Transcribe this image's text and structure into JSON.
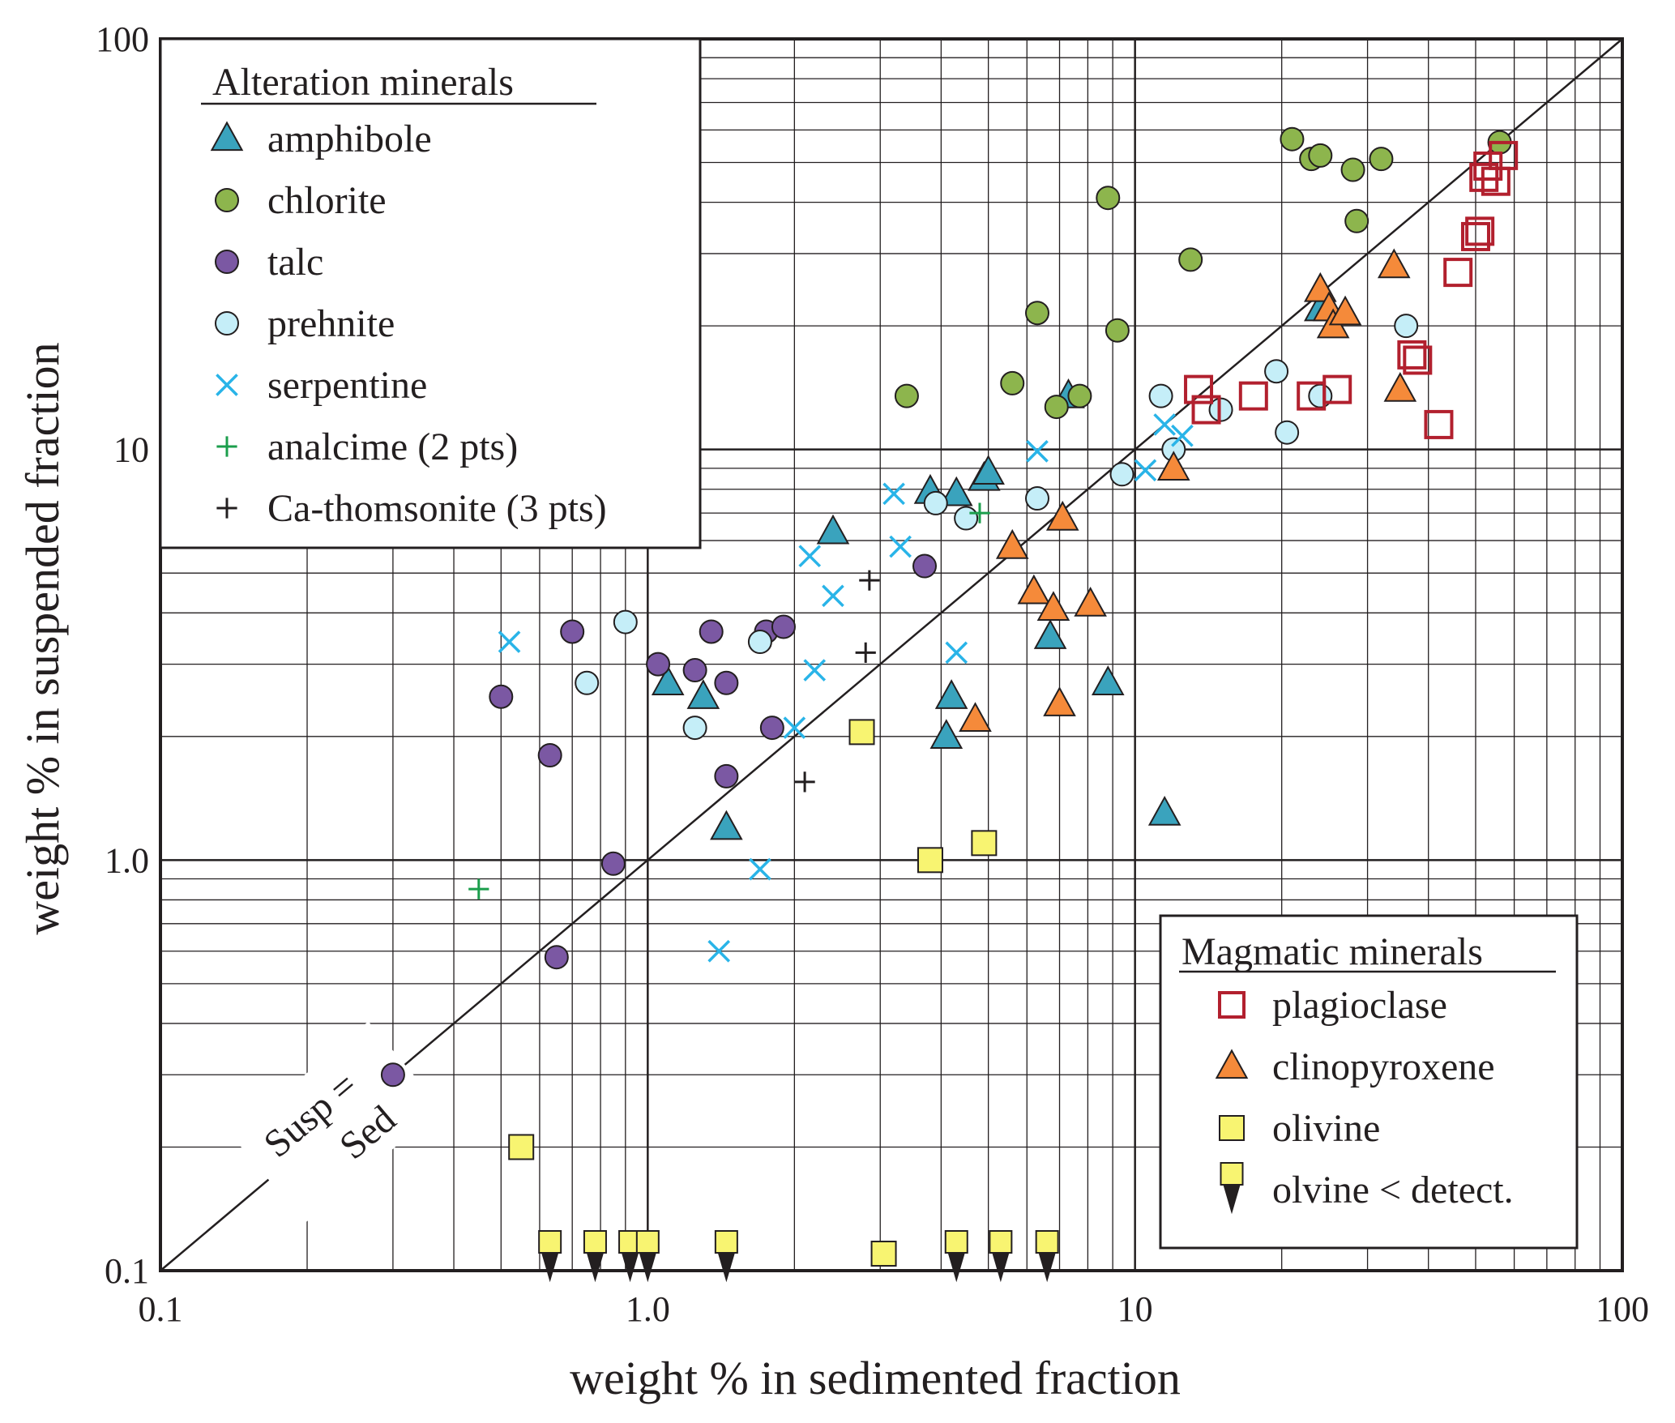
{
  "chart_data": {
    "type": "scatter",
    "xscale": "log",
    "yscale": "log",
    "xlim": [
      0.1,
      100
    ],
    "ylim": [
      0.1,
      100
    ],
    "xlabel": "weight % in sedimented fraction",
    "ylabel": "weight % in suspended fraction",
    "xticks": [
      "0.1",
      "1.0",
      "10",
      "100"
    ],
    "yticks": [
      "0.1",
      "1.0",
      "10",
      "100"
    ],
    "reference_line": {
      "label_line1": "Susp =",
      "label_line2": "Sed"
    },
    "legend_alteration": {
      "title": "Alteration minerals",
      "entries": [
        "amphibole",
        "chlorite",
        "talc",
        "prehnite",
        "serpentine",
        "analcime (2 pts)",
        "Ca-thomsonite (3 pts)"
      ]
    },
    "legend_magmatic": {
      "title": "Magmatic minerals",
      "entries": [
        "plagioclase",
        "clinopyroxene",
        "olivine",
        "olvine < detect."
      ]
    },
    "series": [
      {
        "name": "amphibole",
        "marker": "triangle",
        "color": "#3aa3bd",
        "points": [
          [
            1.1,
            2.7
          ],
          [
            1.3,
            2.5
          ],
          [
            1.45,
            1.2
          ],
          [
            2.4,
            6.3
          ],
          [
            3.8,
            7.9
          ],
          [
            4.3,
            7.8
          ],
          [
            4.9,
            8.5
          ],
          [
            5.0,
            8.8
          ],
          [
            7.3,
            13.5
          ],
          [
            4.2,
            2.5
          ],
          [
            4.1,
            2.0
          ],
          [
            6.7,
            3.5
          ],
          [
            8.8,
            2.7
          ],
          [
            11.5,
            1.3
          ],
          [
            24.0,
            22.0
          ]
        ]
      },
      {
        "name": "chlorite",
        "marker": "circle",
        "color": "#8db54d",
        "points": [
          [
            3.4,
            13.5
          ],
          [
            5.6,
            14.5
          ],
          [
            6.3,
            21.5
          ],
          [
            6.9,
            12.7
          ],
          [
            7.7,
            13.5
          ],
          [
            8.8,
            41.0
          ],
          [
            9.2,
            19.5
          ],
          [
            13.0,
            29.0
          ],
          [
            21.0,
            57.0
          ],
          [
            23.0,
            51.0
          ],
          [
            24.0,
            52.0
          ],
          [
            28.0,
            48.0
          ],
          [
            28.5,
            36.0
          ],
          [
            32.0,
            51.0
          ],
          [
            56.0,
            56.0
          ]
        ]
      },
      {
        "name": "talc",
        "marker": "circle",
        "color": "#7b58a3",
        "points": [
          [
            0.3,
            0.3
          ],
          [
            0.5,
            2.5
          ],
          [
            0.63,
            1.8
          ],
          [
            0.65,
            0.58
          ],
          [
            0.7,
            3.6
          ],
          [
            0.85,
            0.98
          ],
          [
            1.05,
            3.0
          ],
          [
            1.25,
            2.9
          ],
          [
            1.35,
            3.6
          ],
          [
            1.45,
            1.6
          ],
          [
            1.45,
            2.7
          ],
          [
            1.75,
            3.6
          ],
          [
            1.8,
            2.1
          ],
          [
            1.9,
            3.7
          ],
          [
            3.7,
            5.2
          ]
        ]
      },
      {
        "name": "prehnite",
        "marker": "circle",
        "color": "#c5eef8",
        "points": [
          [
            0.75,
            2.7
          ],
          [
            0.9,
            3.8
          ],
          [
            1.25,
            2.1
          ],
          [
            1.7,
            3.4
          ],
          [
            3.9,
            7.4
          ],
          [
            4.5,
            6.8
          ],
          [
            6.3,
            7.6
          ],
          [
            9.4,
            8.7
          ],
          [
            11.3,
            13.5
          ],
          [
            12.0,
            10.0
          ],
          [
            15.0,
            12.5
          ],
          [
            19.5,
            15.5
          ],
          [
            20.5,
            11.0
          ],
          [
            24.0,
            13.5
          ],
          [
            36.0,
            20.0
          ]
        ]
      },
      {
        "name": "serpentine",
        "marker": "x",
        "color": "#29b4e8",
        "points": [
          [
            0.52,
            3.4
          ],
          [
            1.4,
            0.6
          ],
          [
            1.7,
            0.95
          ],
          [
            2.0,
            2.1
          ],
          [
            2.15,
            5.5
          ],
          [
            2.2,
            2.9
          ],
          [
            2.4,
            4.4
          ],
          [
            3.2,
            7.8
          ],
          [
            3.3,
            5.8
          ],
          [
            4.3,
            3.2
          ],
          [
            6.3,
            9.9
          ],
          [
            10.5,
            8.9
          ],
          [
            11.5,
            11.5
          ],
          [
            12.5,
            10.8
          ]
        ]
      },
      {
        "name": "analcime (2 pts)",
        "marker": "plus",
        "color": "#1b9e4c",
        "points": [
          [
            0.45,
            0.85
          ],
          [
            4.8,
            7.0
          ]
        ]
      },
      {
        "name": "Ca-thomsonite (3 pts)",
        "marker": "plus",
        "color": "#231f20",
        "points": [
          [
            2.1,
            1.55
          ],
          [
            2.8,
            3.2
          ],
          [
            2.85,
            4.8
          ]
        ]
      },
      {
        "name": "plagioclase",
        "marker": "square-open",
        "color": "#b2202e",
        "points": [
          [
            13.5,
            14.0
          ],
          [
            14.0,
            12.5
          ],
          [
            17.5,
            13.5
          ],
          [
            23.0,
            13.5
          ],
          [
            26.0,
            14.0
          ],
          [
            37.0,
            17.0
          ],
          [
            38.0,
            16.5
          ],
          [
            42.0,
            11.5
          ],
          [
            46.0,
            27.0
          ],
          [
            50.0,
            33.0
          ],
          [
            51.0,
            34.0
          ],
          [
            52.0,
            46.0
          ],
          [
            53.0,
            49.0
          ],
          [
            55.0,
            45.0
          ],
          [
            57.0,
            52.0
          ]
        ]
      },
      {
        "name": "clinopyroxene",
        "marker": "triangle",
        "color": "#f58a3a",
        "points": [
          [
            12.0,
            9.0
          ],
          [
            4.7,
            2.2
          ],
          [
            5.6,
            5.8
          ],
          [
            6.2,
            4.5
          ],
          [
            6.8,
            4.1
          ],
          [
            7.0,
            2.4
          ],
          [
            7.1,
            6.8
          ],
          [
            8.1,
            4.2
          ],
          [
            24.0,
            24.5
          ],
          [
            25.0,
            22.0
          ],
          [
            25.5,
            20.0
          ],
          [
            27.0,
            21.5
          ],
          [
            34.0,
            28.0
          ],
          [
            35.0,
            14.0
          ]
        ]
      },
      {
        "name": "olivine",
        "marker": "square",
        "color": "#f8f471",
        "points": [
          [
            0.55,
            0.2
          ],
          [
            2.75,
            2.05
          ],
          [
            3.05,
            0.11
          ],
          [
            3.8,
            1.0
          ],
          [
            4.9,
            1.1
          ]
        ]
      },
      {
        "name": "olvine < detect.",
        "marker": "square-arrow",
        "color": "#f8f471",
        "points": [
          [
            0.63,
            0.1
          ],
          [
            0.78,
            0.1
          ],
          [
            0.92,
            0.1
          ],
          [
            1.0,
            0.1
          ],
          [
            1.45,
            0.1
          ],
          [
            4.3,
            0.1
          ],
          [
            5.3,
            0.1
          ],
          [
            6.6,
            0.1
          ]
        ]
      }
    ]
  }
}
